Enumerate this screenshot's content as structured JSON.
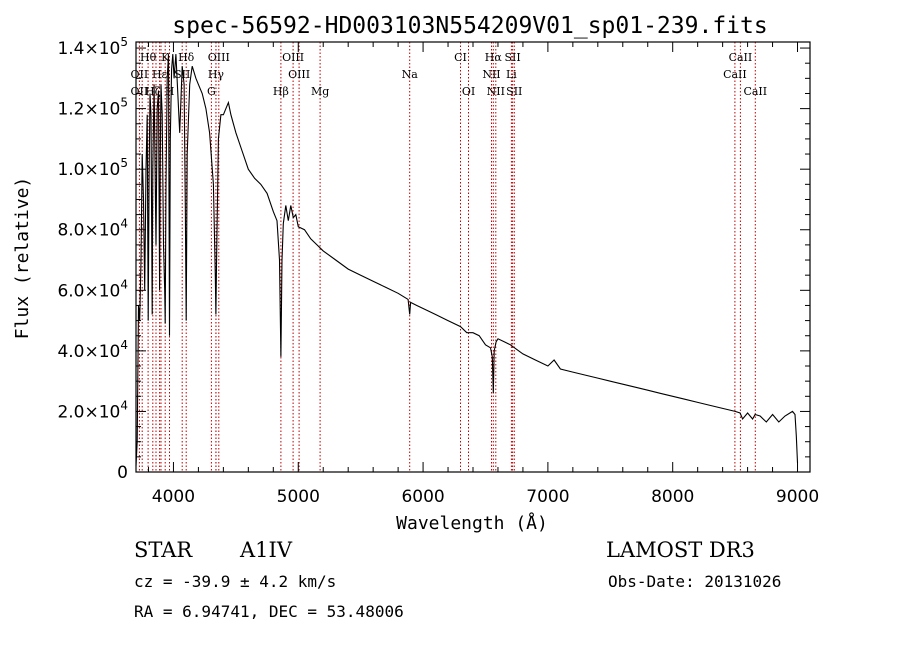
{
  "chart_data": {
    "type": "line",
    "title": "spec-56592-HD003103N554209V01_sp01-239.fits",
    "xlabel": "Wavelength (Å)",
    "ylabel": "Flux (relative)",
    "xlim": [
      3700,
      9100
    ],
    "ylim": [
      0,
      142000
    ],
    "x_ticks": [
      4000,
      5000,
      6000,
      7000,
      8000,
      9000
    ],
    "x_tick_labels": [
      "4000",
      "5000",
      "6000",
      "7000",
      "8000",
      "9000"
    ],
    "y_ticks": [
      {
        "value": 0,
        "mant": "0",
        "exp": ""
      },
      {
        "value": 20000,
        "mant": "2.0×10",
        "exp": "4"
      },
      {
        "value": 40000,
        "mant": "4.0×10",
        "exp": "4"
      },
      {
        "value": 60000,
        "mant": "6.0×10",
        "exp": "4"
      },
      {
        "value": 80000,
        "mant": "8.0×10",
        "exp": "4"
      },
      {
        "value": 100000,
        "mant": "1.0×10",
        "exp": "5"
      },
      {
        "value": 120000,
        "mant": "1.2×10",
        "exp": "5"
      },
      {
        "value": 140000,
        "mant": "1.4×10",
        "exp": "5"
      }
    ],
    "series": [
      {
        "name": "spectrum",
        "x": [
          3700,
          3710,
          3720,
          3730,
          3740,
          3750,
          3760,
          3770,
          3780,
          3790,
          3798,
          3805,
          3812,
          3820,
          3830,
          3835,
          3845,
          3860,
          3870,
          3880,
          3889,
          3895,
          3900,
          3910,
          3920,
          3930,
          3934,
          3940,
          3950,
          3960,
          3968,
          3975,
          3985,
          3995,
          4005,
          4020,
          4050,
          4070,
          4085,
          4095,
          4102,
          4110,
          4130,
          4150,
          4180,
          4200,
          4230,
          4260,
          4290,
          4320,
          4335,
          4340,
          4345,
          4360,
          4380,
          4400,
          4420,
          4440,
          4460,
          4480,
          4500,
          4550,
          4600,
          4650,
          4700,
          4750,
          4800,
          4830,
          4850,
          4861,
          4870,
          4880,
          4900,
          4920,
          4940,
          4960,
          4980,
          5000,
          5050,
          5100,
          5150,
          5200,
          5300,
          5400,
          5500,
          5600,
          5700,
          5800,
          5880,
          5893,
          5900,
          5950,
          6000,
          6100,
          6200,
          6300,
          6350,
          6400,
          6450,
          6500,
          6540,
          6555,
          6563,
          6570,
          6585,
          6600,
          6650,
          6700,
          6800,
          6900,
          7000,
          7050,
          7100,
          7200,
          7300,
          7400,
          7500,
          7600,
          7700,
          7800,
          7900,
          8000,
          8100,
          8200,
          8300,
          8400,
          8450,
          8500,
          8540,
          8560,
          8600,
          8640,
          8660,
          8700,
          8750,
          8800,
          8850,
          8900,
          8960,
          8980,
          8990,
          9000
        ],
        "y": [
          2000,
          10000,
          55000,
          50000,
          70000,
          105000,
          90000,
          60000,
          100000,
          118000,
          50000,
          98000,
          125000,
          118000,
          52000,
          100000,
          128000,
          75000,
          120000,
          126000,
          60000,
          105000,
          128000,
          118000,
          75000,
          60000,
          49000,
          95000,
          130000,
          138000,
          45000,
          110000,
          133000,
          138000,
          130000,
          138000,
          112000,
          134000,
          128000,
          88000,
          50000,
          105000,
          128000,
          134000,
          130000,
          128000,
          125000,
          120000,
          112000,
          95000,
          65000,
          52000,
          68000,
          110000,
          118000,
          118000,
          120000,
          122000,
          118000,
          115000,
          112000,
          106000,
          100000,
          97000,
          95000,
          92000,
          86000,
          83000,
          70000,
          38000,
          70000,
          82000,
          88000,
          83000,
          88000,
          84000,
          85000,
          81000,
          80000,
          77000,
          75000,
          73000,
          70000,
          67000,
          65000,
          63000,
          61000,
          59000,
          57000,
          52000,
          56000,
          55000,
          54000,
          52000,
          50000,
          48000,
          46000,
          46000,
          45000,
          42000,
          41000,
          38000,
          26000,
          40000,
          43000,
          44000,
          43000,
          42000,
          39000,
          37000,
          35000,
          37000,
          34000,
          33000,
          32000,
          31000,
          30000,
          29000,
          28000,
          27000,
          26000,
          25000,
          24000,
          23000,
          22000,
          21000,
          20500,
          20000,
          19500,
          17500,
          19500,
          17500,
          19000,
          18500,
          16500,
          19000,
          16500,
          18500,
          20000,
          19000,
          12000,
          3000
        ]
      }
    ],
    "line_labels": [
      {
        "label": "Hθ",
        "row": 1,
        "wl": [
          3797
        ]
      },
      {
        "label": "K",
        "row": 1,
        "wl": [
          3934
        ]
      },
      {
        "label": "Hδ",
        "row": 1,
        "wl": [
          4102
        ]
      },
      {
        "label": "OIII",
        "row": 1,
        "wl": [
          4363
        ]
      },
      {
        "label": "OIII",
        "row": 1,
        "wl": [
          4959
        ]
      },
      {
        "label": "CI",
        "row": 1,
        "wl": [
          6300
        ]
      },
      {
        "label": "Hα",
        "row": 1,
        "wl": [
          6563
        ]
      },
      {
        "label": "SII",
        "row": 1,
        "wl": [
          6717
        ]
      },
      {
        "label": "CaII",
        "row": 1,
        "wl": [
          8542
        ]
      },
      {
        "label": "OII",
        "row": 2,
        "wl": [
          3727
        ]
      },
      {
        "label": "Hε",
        "row": 2,
        "wl": [
          3889
        ]
      },
      {
        "label": "SII",
        "row": 2,
        "wl": [
          4070
        ]
      },
      {
        "label": "Hγ",
        "row": 2,
        "wl": [
          4340
        ]
      },
      {
        "label": "OIII",
        "row": 2,
        "wl": [
          5007
        ]
      },
      {
        "label": "Na",
        "row": 2,
        "wl": [
          5893
        ]
      },
      {
        "label": "NII",
        "row": 2,
        "wl": [
          6548
        ]
      },
      {
        "label": "Li",
        "row": 2,
        "wl": [
          6708
        ]
      },
      {
        "label": "CaII",
        "row": 2,
        "wl": [
          8498
        ]
      },
      {
        "label": "OII",
        "row": 3,
        "wl": [
          3727
        ]
      },
      {
        "label": "Hζ",
        "row": 3,
        "wl": [
          3835
        ]
      },
      {
        "label": "H",
        "row": 3,
        "wl": [
          3968
        ]
      },
      {
        "label": "G",
        "row": 3,
        "wl": [
          4304
        ]
      },
      {
        "label": "Hβ",
        "row": 3,
        "wl": [
          4861
        ]
      },
      {
        "label": "Mg",
        "row": 3,
        "wl": [
          5175
        ]
      },
      {
        "label": "OI",
        "row": 3,
        "wl": [
          6364
        ]
      },
      {
        "label": "NII",
        "row": 3,
        "wl": [
          6583
        ]
      },
      {
        "label": "SII",
        "row": 3,
        "wl": [
          6731
        ]
      },
      {
        "label": "CaII",
        "row": 3,
        "wl": [
          8662
        ]
      }
    ],
    "extra_marker_lines": [
      3750,
      3860,
      3900,
      4341
    ]
  },
  "info": {
    "object_class": "STAR",
    "subclass": "A1IV",
    "survey": "LAMOST DR3",
    "cz_text": "cz = -39.9 ± 4.2 km/s",
    "obs_date_text": "Obs-Date: 20131026",
    "coords_text": "RA =   6.94741, DEC =  53.48006"
  },
  "colors": {
    "axis": "#000000",
    "spectrum": "#000000",
    "marker": "#c00000",
    "background": "#ffffff"
  }
}
